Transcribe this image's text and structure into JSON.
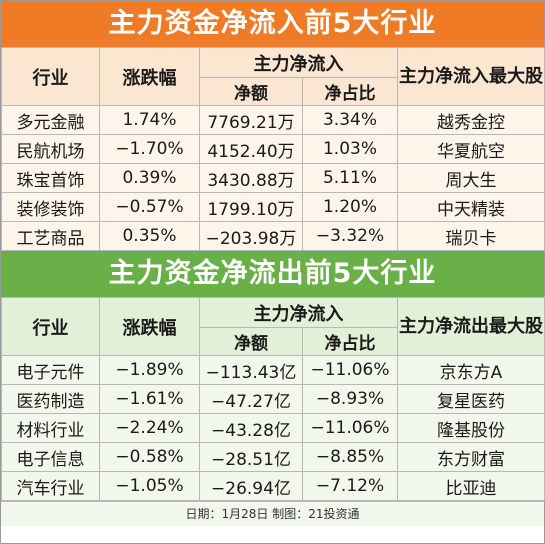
{
  "inflow": {
    "title": "主力资金净流入前5大行业",
    "headers": {
      "industry": "行业",
      "change": "涨跌幅",
      "netflow": "主力净流入",
      "amount": "净额",
      "ratio": "净占比",
      "top_stock": "主力净流入最大股"
    },
    "rows": [
      {
        "industry": "多元金融",
        "change": "1.74%",
        "amount": "7769.21万",
        "ratio": "3.34%",
        "stock": "越秀金控"
      },
      {
        "industry": "民航机场",
        "change": "−1.70%",
        "amount": "4152.40万",
        "ratio": "1.03%",
        "stock": "华夏航空"
      },
      {
        "industry": "珠宝首饰",
        "change": "0.39%",
        "amount": "3430.88万",
        "ratio": "5.11%",
        "stock": "周大生"
      },
      {
        "industry": "装修装饰",
        "change": "−0.57%",
        "amount": "1799.10万",
        "ratio": "1.20%",
        "stock": "中天精装"
      },
      {
        "industry": "工艺商品",
        "change": "0.35%",
        "amount": "−203.98万",
        "ratio": "−3.32%",
        "stock": "瑞贝卡"
      }
    ]
  },
  "outflow": {
    "title": "主力资金净流出前5大行业",
    "headers": {
      "industry": "行业",
      "change": "涨跌幅",
      "netflow": "主力净流入",
      "amount": "净额",
      "ratio": "净占比",
      "top_stock": "主力净流出最大股"
    },
    "rows": [
      {
        "industry": "电子元件",
        "change": "−1.89%",
        "amount": "−113.43亿",
        "ratio": "−11.06%",
        "stock": "京东方A"
      },
      {
        "industry": "医药制造",
        "change": "−1.61%",
        "amount": "−47.27亿",
        "ratio": "−8.93%",
        "stock": "复星医药"
      },
      {
        "industry": "材料行业",
        "change": "−2.24%",
        "amount": "−43.28亿",
        "ratio": "−11.06%",
        "stock": "隆基股份"
      },
      {
        "industry": "电子信息",
        "change": "−0.58%",
        "amount": "−28.51亿",
        "ratio": "−8.85%",
        "stock": "东方财富"
      },
      {
        "industry": "汽车行业",
        "change": "−1.05%",
        "amount": "−26.94亿",
        "ratio": "−7.12%",
        "stock": "比亚迪"
      }
    ]
  },
  "footer": "日期：1月28日 制图：21投资通",
  "colors": {
    "inflow_banner": "#f07b26",
    "outflow_banner": "#6ab048"
  }
}
